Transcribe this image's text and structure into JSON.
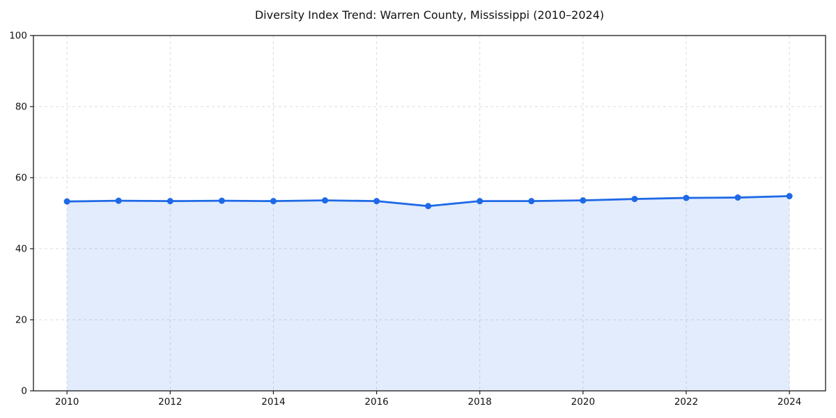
{
  "figure": {
    "background": "#ffffff"
  },
  "chart_data": {
    "type": "area",
    "title": "Diversity Index Trend: Warren County, Mississippi (2010–2024)",
    "x": [
      2010,
      2011,
      2012,
      2013,
      2014,
      2015,
      2016,
      2017,
      2018,
      2019,
      2020,
      2021,
      2022,
      2023,
      2024
    ],
    "values": [
      53.3,
      53.5,
      53.4,
      53.5,
      53.4,
      53.6,
      53.4,
      52.0,
      53.4,
      53.4,
      53.6,
      54.0,
      54.3,
      54.4,
      54.8
    ],
    "xlabel": "",
    "ylabel": "",
    "xlim_padding_years": [
      0.65,
      0.7
    ],
    "ylim": [
      0,
      100
    ],
    "yticks": [
      0,
      20,
      40,
      60,
      80,
      100
    ],
    "xticks": [
      2010,
      2012,
      2014,
      2016,
      2018,
      2020,
      2022,
      2024
    ],
    "grid": true,
    "grid_style": "dashed",
    "legend": "none",
    "colors": {
      "line": "#1e69e6",
      "marker": "#1e69e6",
      "fill": "rgba(30, 105, 230, 0.13)",
      "grid": "#dbdbdb",
      "axis": "#1a1a1a",
      "tick_text": "#111111"
    }
  }
}
